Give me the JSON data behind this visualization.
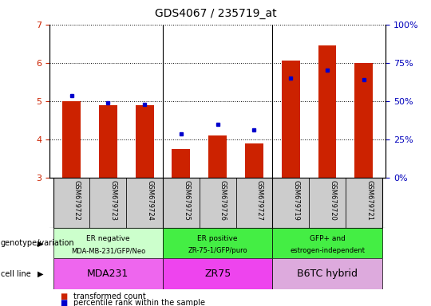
{
  "title": "GDS4067 / 235719_at",
  "samples": [
    "GSM679722",
    "GSM679723",
    "GSM679724",
    "GSM679725",
    "GSM679726",
    "GSM679727",
    "GSM679719",
    "GSM679720",
    "GSM679721"
  ],
  "bar_values": [
    5.0,
    4.9,
    4.9,
    3.75,
    4.1,
    3.9,
    6.05,
    6.45,
    6.0
  ],
  "dot_values": [
    5.15,
    4.95,
    4.92,
    4.15,
    4.4,
    4.25,
    5.6,
    5.8,
    5.55
  ],
  "ylim_left": [
    3,
    7
  ],
  "ylim_right": [
    0,
    100
  ],
  "yticks_left": [
    3,
    4,
    5,
    6,
    7
  ],
  "yticks_right": [
    0,
    25,
    50,
    75,
    100
  ],
  "bar_color": "#cc2200",
  "dot_color": "#0000cc",
  "groups": [
    {
      "label_top": "ER negative",
      "label_bot": "MDA-MB-231/GFP/Neo",
      "cell_line": "MDA231",
      "indices": [
        0,
        1,
        2
      ],
      "genotype_color": "#ccffcc",
      "cell_color": "#ee66ee"
    },
    {
      "label_top": "ER positive",
      "label_bot": "ZR-75-1/GFP/puro",
      "cell_line": "ZR75",
      "indices": [
        3,
        4,
        5
      ],
      "genotype_color": "#44ee44",
      "cell_color": "#ee44ee"
    },
    {
      "label_top": "GFP+ and",
      "label_bot": "estrogen-independent",
      "cell_line": "B6TC hybrid",
      "indices": [
        6,
        7,
        8
      ],
      "genotype_color": "#44ee44",
      "cell_color": "#ddaadd"
    }
  ],
  "legend_items": [
    {
      "label": "transformed count",
      "color": "#cc2200"
    },
    {
      "label": "percentile rank within the sample",
      "color": "#0000cc"
    }
  ],
  "xlabel_color": "#cc2200",
  "ylabel_right_color": "#0000bb",
  "tick_bg_color": "#cccccc",
  "separator_indices": [
    3,
    6
  ],
  "bar_width": 0.5
}
